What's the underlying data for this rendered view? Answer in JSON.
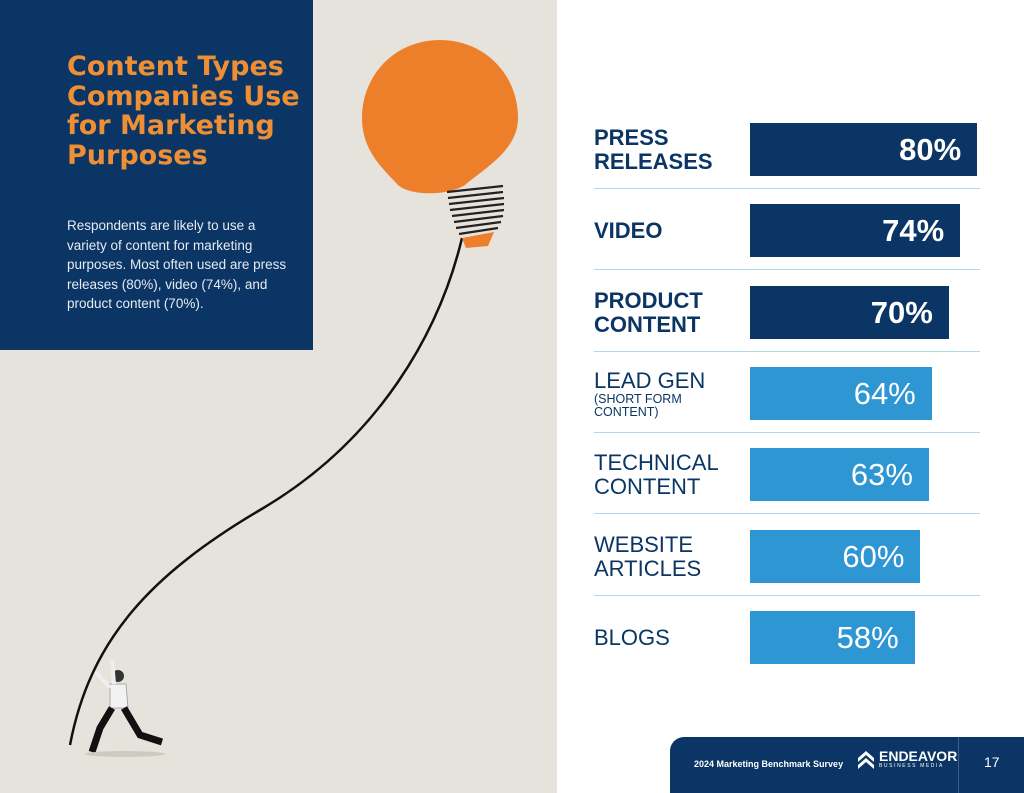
{
  "intro": {
    "title": "Content Types Companies Use for Marketing Purposes",
    "description": "Respondents are likely to use a variety of content for marketing purposes. Most often used are press releases (80%), video (74%), and product content (70%)."
  },
  "colors": {
    "navy": "#0b3564",
    "orange": "#ee8f35",
    "light_blue": "#2e96d3"
  },
  "chart_data": {
    "type": "bar",
    "orientation": "horizontal",
    "categories": [
      "PRESS RELEASES",
      "VIDEO",
      "PRODUCT CONTENT",
      "LEAD GEN",
      "TECHNICAL CONTENT",
      "WEBSITE ARTICLES",
      "BLOGS"
    ],
    "sublabels": [
      "",
      "",
      "",
      "(SHORT FORM CONTENT)",
      "",
      "",
      ""
    ],
    "values": [
      80,
      74,
      70,
      64,
      63,
      60,
      58
    ],
    "labels": [
      "80%",
      "74%",
      "70%",
      "64%",
      "63%",
      "60%",
      "58%"
    ],
    "highlighted": [
      true,
      true,
      true,
      false,
      false,
      false,
      false
    ],
    "xlim": [
      0,
      100
    ]
  },
  "footer": {
    "survey": "2024 Marketing Benchmark Survey",
    "logo_name": "ENDEAVOR",
    "logo_tagline": "BUSINESS MEDIA",
    "page_number": "17"
  }
}
